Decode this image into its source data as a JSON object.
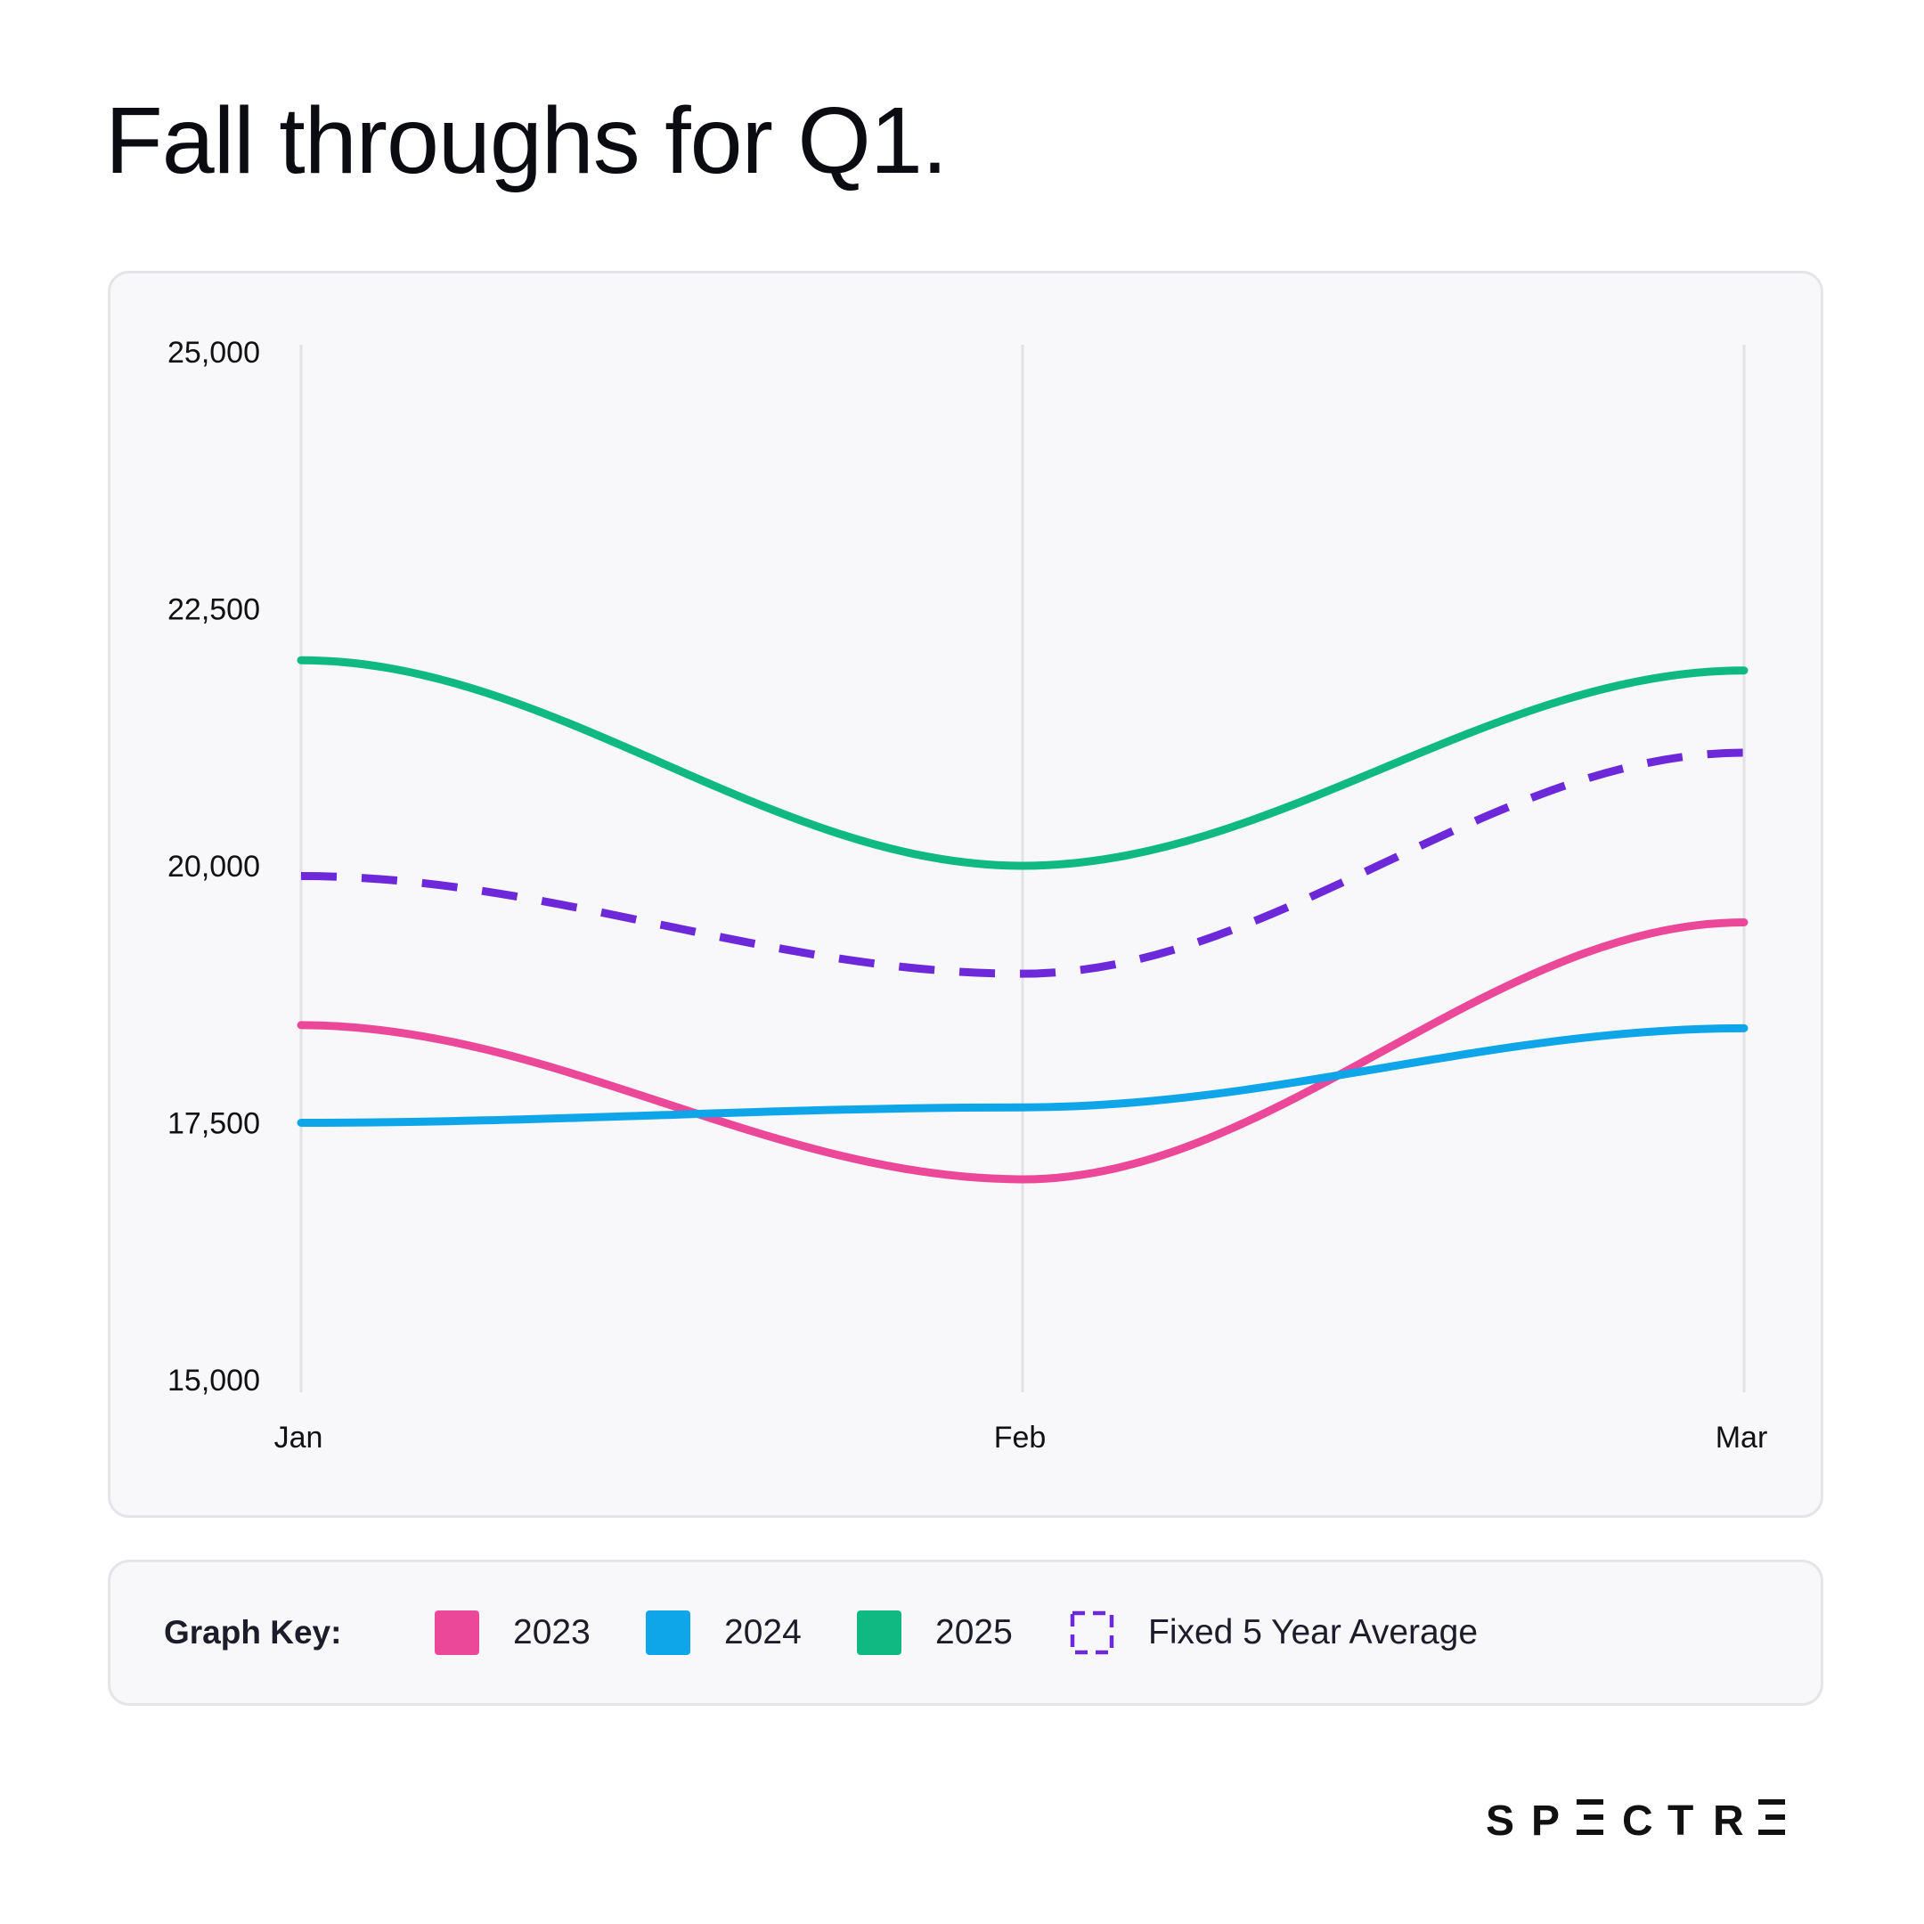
{
  "title": "Fall throughs for Q1.",
  "legend": {
    "title": "Graph Key:",
    "items": [
      {
        "label": "2023",
        "color": "#ec4899",
        "style": "solid"
      },
      {
        "label": "2024",
        "color": "#0ea5e9",
        "style": "solid"
      },
      {
        "label": "2025",
        "color": "#10b981",
        "style": "solid"
      },
      {
        "label": "Fixed 5 Year Average",
        "color": "#6d28d9",
        "style": "dashed"
      }
    ]
  },
  "brand": {
    "letters": [
      "S",
      "P",
      "E",
      "C",
      "T",
      "R",
      "E"
    ],
    "color": "#111111"
  },
  "chart_data": {
    "type": "line",
    "title": "Fall throughs for Q1.",
    "xlabel": "",
    "ylabel": "",
    "categories": [
      "Jan",
      "Feb",
      "Mar"
    ],
    "ylim": [
      15000,
      25000
    ],
    "yticks": [
      15000,
      17500,
      20000,
      22500,
      25000
    ],
    "ytick_labels": [
      "15,000",
      "17,500",
      "20,000",
      "22,500",
      "25,000"
    ],
    "grid": "vertical",
    "legend_position": "bottom",
    "series": [
      {
        "name": "2023",
        "values": [
          18450,
          16950,
          19450
        ],
        "color": "#ec4899",
        "dashed": false
      },
      {
        "name": "2024",
        "values": [
          17500,
          17650,
          18420
        ],
        "color": "#0ea5e9",
        "dashed": false
      },
      {
        "name": "2025",
        "values": [
          22000,
          20000,
          21900
        ],
        "color": "#10b981",
        "dashed": false
      },
      {
        "name": "Fixed 5 Year Average",
        "values": [
          19900,
          18950,
          21100
        ],
        "color": "#6d28d9",
        "dashed": true
      }
    ]
  }
}
